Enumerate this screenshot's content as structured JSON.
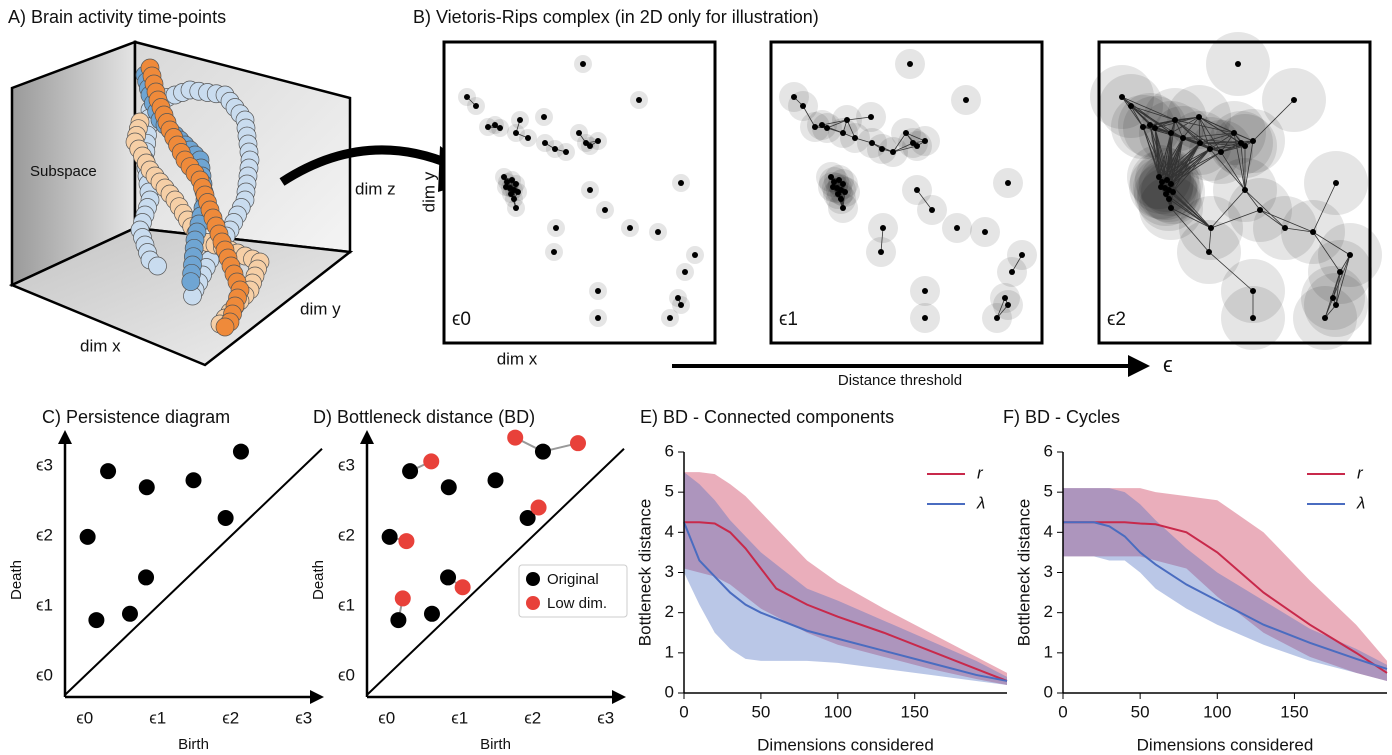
{
  "panel_a": {
    "title": "A) Brain activity time-points",
    "subspace_label": "Subspace",
    "z_label": "dim z",
    "y_label": "dim y",
    "x_label": "dim x"
  },
  "panel_b": {
    "title": "B) Vietoris-Rips complex (in 2D only for illustration)",
    "y_label": "dim y",
    "x_label": "dim x",
    "frame_labels": [
      "ϵ0",
      "ϵ1",
      "ϵ2"
    ],
    "threshold_label": "Distance threshold",
    "threshold_symbol": "ϵ"
  },
  "chart_data": [
    {
      "type": "scatter",
      "title": "C) Persistence diagram",
      "x_label": "Birth",
      "y_label": "Death",
      "xlim": [
        -0.27,
        3.25
      ],
      "ylim": [
        -0.3,
        3.49
      ],
      "xticks": [
        {
          "value": 0,
          "label": "ϵ0"
        },
        {
          "value": 1,
          "label": "ϵ1"
        },
        {
          "value": 2,
          "label": "ϵ2"
        },
        {
          "value": 3,
          "label": "ϵ3"
        }
      ],
      "yticks": [
        {
          "value": 0,
          "label": "ϵ0"
        },
        {
          "value": 1,
          "label": "ϵ1"
        },
        {
          "value": 2,
          "label": "ϵ2"
        },
        {
          "value": 3,
          "label": "ϵ3"
        }
      ],
      "diagonal": true,
      "series": [
        {
          "color": "#000000",
          "x": [
            0.04,
            0.32,
            0.85,
            1.49,
            2.14,
            1.93,
            0.84,
            0.62,
            0.16
          ],
          "values": [
            1.99,
            2.93,
            2.7,
            2.8,
            3.21,
            2.26,
            1.41,
            0.89,
            0.8
          ]
        }
      ]
    },
    {
      "type": "scatter",
      "title": "D) Bottleneck distance (BD)",
      "x_label": "Birth",
      "y_label": "Death",
      "xlim": [
        -0.27,
        3.25
      ],
      "ylim": [
        -0.3,
        3.49
      ],
      "xticks": [
        {
          "value": 0,
          "label": "ϵ0"
        },
        {
          "value": 1,
          "label": "ϵ1"
        },
        {
          "value": 2,
          "label": "ϵ2"
        },
        {
          "value": 3,
          "label": "ϵ3"
        }
      ],
      "yticks": [
        {
          "value": 0,
          "label": "ϵ0"
        },
        {
          "value": 1,
          "label": "ϵ1"
        },
        {
          "value": 2,
          "label": "ϵ2"
        },
        {
          "value": 3,
          "label": "ϵ3"
        }
      ],
      "diagonal": true,
      "legend": "center right",
      "series": [
        {
          "name": "Original",
          "color": "#000000",
          "x": [
            0.04,
            0.32,
            0.85,
            1.49,
            2.14,
            1.93,
            0.84,
            0.62,
            0.16
          ],
          "values": [
            1.99,
            2.93,
            2.7,
            2.8,
            3.21,
            2.26,
            1.41,
            0.89,
            0.8
          ]
        },
        {
          "name": "Low dim.",
          "color": "#e8413a",
          "x": [
            0.22,
            0.27,
            0.61,
            1.04,
            1.76,
            2.08,
            2.62
          ],
          "values": [
            1.11,
            1.93,
            3.07,
            1.27,
            3.41,
            2.41,
            3.33
          ]
        }
      ]
    },
    {
      "type": "line",
      "title": "E) BD - Connected components",
      "x_label": "Dimensions considered",
      "y_label": "Bottleneck distance",
      "xlim": [
        0,
        210
      ],
      "ylim": [
        0,
        6
      ],
      "xticks": [
        0,
        50,
        100,
        150
      ],
      "yticks": [
        0,
        1,
        2,
        3,
        4,
        5,
        6
      ],
      "legend": "upper right",
      "x": [
        0,
        10,
        20,
        30,
        40,
        50,
        60,
        80,
        100,
        130,
        160,
        190,
        210
      ],
      "series": [
        {
          "name": "r",
          "color": "#c8294b",
          "values": [
            4.25,
            4.25,
            4.22,
            4.0,
            3.6,
            3.1,
            2.6,
            2.2,
            1.9,
            1.5,
            1.05,
            0.6,
            0.3
          ],
          "lower": [
            3.1,
            3.0,
            2.9,
            2.7,
            2.4,
            2.1,
            1.9,
            1.5,
            1.2,
            0.9,
            0.6,
            0.35,
            0.2
          ],
          "upper": [
            5.5,
            5.5,
            5.45,
            5.2,
            4.9,
            4.5,
            4.1,
            3.3,
            2.75,
            2.1,
            1.5,
            0.9,
            0.5
          ]
        },
        {
          "name": "λ",
          "color": "#4a6cc0",
          "values": [
            4.25,
            3.3,
            2.9,
            2.5,
            2.2,
            2.0,
            1.85,
            1.55,
            1.35,
            1.05,
            0.75,
            0.45,
            0.3
          ],
          "lower": [
            3.0,
            2.2,
            1.5,
            1.1,
            0.85,
            0.8,
            0.8,
            0.8,
            0.75,
            0.6,
            0.45,
            0.3,
            0.2
          ],
          "upper": [
            5.5,
            5.2,
            4.8,
            4.3,
            3.9,
            3.5,
            3.2,
            2.6,
            2.3,
            1.8,
            1.3,
            0.8,
            0.4
          ]
        }
      ]
    },
    {
      "type": "line",
      "title": "F) BD - Cycles",
      "x_label": "Dimensions considered",
      "y_label": "Bottleneck distance",
      "xlim": [
        0,
        210
      ],
      "ylim": [
        0,
        6
      ],
      "xticks": [
        0,
        50,
        100,
        150
      ],
      "yticks": [
        0,
        1,
        2,
        3,
        4,
        5,
        6
      ],
      "legend": "upper right",
      "x": [
        0,
        10,
        20,
        30,
        40,
        50,
        60,
        80,
        100,
        130,
        160,
        190,
        210
      ],
      "series": [
        {
          "name": "r",
          "color": "#c8294b",
          "values": [
            4.25,
            4.25,
            4.25,
            4.25,
            4.25,
            4.22,
            4.2,
            4.0,
            3.5,
            2.5,
            1.7,
            1.0,
            0.5
          ],
          "lower": [
            3.4,
            3.4,
            3.4,
            3.4,
            3.4,
            3.4,
            3.3,
            3.1,
            2.4,
            1.5,
            0.9,
            0.5,
            0.3
          ],
          "upper": [
            5.1,
            5.1,
            5.1,
            5.1,
            5.1,
            5.1,
            5.0,
            4.9,
            4.8,
            4.0,
            2.8,
            1.7,
            0.8
          ]
        },
        {
          "name": "λ",
          "color": "#4a6cc0",
          "values": [
            4.25,
            4.25,
            4.25,
            4.15,
            3.9,
            3.5,
            3.2,
            2.7,
            2.3,
            1.7,
            1.25,
            0.85,
            0.6
          ],
          "lower": [
            3.4,
            3.4,
            3.4,
            3.3,
            3.3,
            3.0,
            2.6,
            2.1,
            1.7,
            1.2,
            0.8,
            0.5,
            0.3
          ],
          "upper": [
            5.1,
            5.1,
            5.1,
            5.1,
            5.0,
            4.7,
            4.3,
            3.6,
            3.0,
            2.3,
            1.6,
            1.1,
            0.7
          ]
        }
      ]
    }
  ]
}
